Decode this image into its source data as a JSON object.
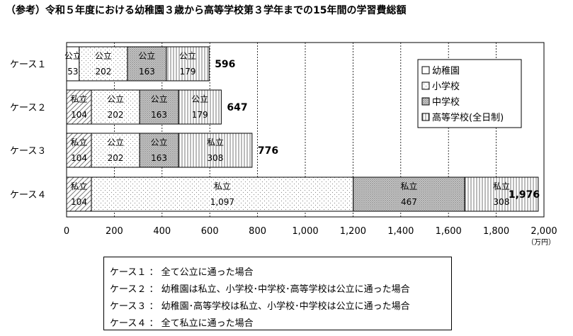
{
  "page_title": "（参考）令和５年度における幼稚園３歳から高等学校第３学年までの15年間の学習費総額",
  "chart_data": {
    "type": "bar",
    "orientation": "horizontal",
    "stacked": true,
    "categories": [
      "ケース１",
      "ケース２",
      "ケース３",
      "ケース４"
    ],
    "series": [
      {
        "name": "幼稚園",
        "values": [
          53,
          104,
          104,
          104
        ],
        "labels": [
          "公立",
          "私立",
          "私立",
          "私立"
        ],
        "pattern": "white"
      },
      {
        "name": "小学校",
        "values": [
          202,
          202,
          202,
          1097
        ],
        "labels": [
          "公立",
          "公立",
          "公立",
          "私立"
        ],
        "pattern": "dots-sparse"
      },
      {
        "name": "中学校",
        "values": [
          163,
          163,
          163,
          467
        ],
        "labels": [
          "公立",
          "公立",
          "公立",
          "私立"
        ],
        "pattern": "dots-dense"
      },
      {
        "name": "高等学校(全日制)",
        "values": [
          179,
          179,
          308,
          308
        ],
        "labels": [
          "公立",
          "公立",
          "私立",
          "私立"
        ],
        "pattern": "vertical-lines"
      }
    ],
    "value_labels": [
      "53",
      "202",
      "163",
      "179",
      "104",
      "202",
      "163",
      "179",
      "104",
      "202",
      "163",
      "308",
      "104",
      "1,097",
      "467",
      "308"
    ],
    "totals": [
      "596",
      "647",
      "776",
      "1,976"
    ],
    "x_ticks": [
      "0",
      "200",
      "400",
      "600",
      "800",
      "1,000",
      "1,200",
      "1,400",
      "1,600",
      "1,800",
      "2,000"
    ],
    "xlim": [
      0,
      2000
    ],
    "unit": "（万円）",
    "legend_position": "top-right",
    "grid": "vertical-dashed"
  },
  "notes": [
    "ケース１ ： 全て公立に通った場合",
    "ケース２ ： 幼稚園は私立、小学校･中学校･高等学校は公立に通った場合",
    "ケース３ ： 幼稚園･高等学校は私立、小学校･中学校は公立に通った場合",
    "ケース４ ： 全て私立に通った場合"
  ]
}
